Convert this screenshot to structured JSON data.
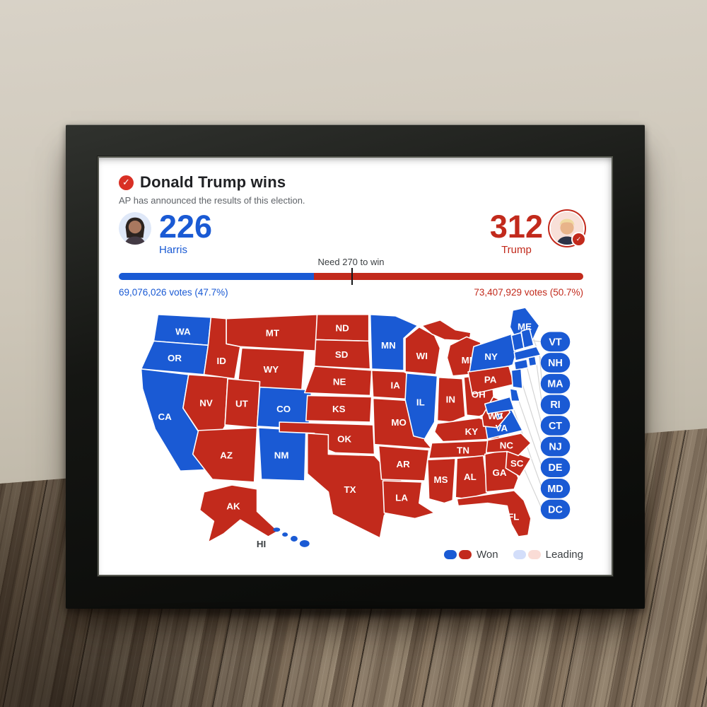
{
  "scene": {
    "setting": "black picture frame standing on rustic wooden table against beige wall",
    "frame_color": "#141613",
    "wall_color": "#cdc6b8",
    "table_wood_color": "#82725f"
  },
  "theme": {
    "dem_blue": "#1a5ad4",
    "rep_red": "#c22a1c",
    "dem_blue_light": "#d3defa",
    "rep_red_light": "#fadcd6",
    "check_red": "#d93025",
    "title_color": "#202124",
    "subtitle_color": "#5f6368",
    "legend_text": "#3c4043",
    "connector_gray": "#d4d4d4",
    "state_label_color": "#ffffff",
    "hi_label_color": "#3c4043"
  },
  "header": {
    "check_icon": "red-circle-white-checkmark",
    "title": "Donald Trump wins",
    "subtitle": "AP has announced the results of this election."
  },
  "scoreboard": {
    "threshold_label": "Need 270 to win",
    "harris": {
      "name": "Harris",
      "electoral_votes": 226,
      "votes_label": "69,076,026 votes (47.7%)",
      "photo": "kamala-harris-portrait"
    },
    "trump": {
      "name": "Trump",
      "electoral_votes": 312,
      "votes_label": "73,407,929 votes (50.7%)",
      "photo": "donald-trump-portrait",
      "winner_badge": "white-checkmark-red-badge"
    }
  },
  "legend": {
    "won_label": "Won",
    "leading_label": "Leading"
  },
  "map": {
    "pill_states": [
      "VT",
      "NH",
      "MA",
      "RI",
      "CT",
      "NJ",
      "DE",
      "MD",
      "DC"
    ],
    "states": [
      {
        "id": "WA",
        "label": "WA",
        "winner": "harris"
      },
      {
        "id": "OR",
        "label": "OR",
        "winner": "harris"
      },
      {
        "id": "CA",
        "label": "CA",
        "winner": "harris"
      },
      {
        "id": "NV",
        "label": "NV",
        "winner": "trump"
      },
      {
        "id": "ID",
        "label": "ID",
        "winner": "trump"
      },
      {
        "id": "MT",
        "label": "MT",
        "winner": "trump"
      },
      {
        "id": "WY",
        "label": "WY",
        "winner": "trump"
      },
      {
        "id": "UT",
        "label": "UT",
        "winner": "trump"
      },
      {
        "id": "CO",
        "label": "CO",
        "winner": "harris"
      },
      {
        "id": "AZ",
        "label": "AZ",
        "winner": "trump"
      },
      {
        "id": "NM",
        "label": "NM",
        "winner": "harris"
      },
      {
        "id": "ND",
        "label": "ND",
        "winner": "trump"
      },
      {
        "id": "SD",
        "label": "SD",
        "winner": "trump"
      },
      {
        "id": "NE",
        "label": "NE",
        "winner": "trump"
      },
      {
        "id": "KS",
        "label": "KS",
        "winner": "trump"
      },
      {
        "id": "OK",
        "label": "OK",
        "winner": "trump"
      },
      {
        "id": "TX",
        "label": "TX",
        "winner": "trump"
      },
      {
        "id": "MN",
        "label": "MN",
        "winner": "harris"
      },
      {
        "id": "IA",
        "label": "IA",
        "winner": "trump"
      },
      {
        "id": "MO",
        "label": "MO",
        "winner": "trump"
      },
      {
        "id": "AR",
        "label": "AR",
        "winner": "trump"
      },
      {
        "id": "LA",
        "label": "LA",
        "winner": "trump"
      },
      {
        "id": "WI",
        "label": "WI",
        "winner": "trump"
      },
      {
        "id": "IL",
        "label": "IL",
        "winner": "harris"
      },
      {
        "id": "MI",
        "label": "MI",
        "winner": "trump"
      },
      {
        "id": "IN",
        "label": "IN",
        "winner": "trump"
      },
      {
        "id": "OH",
        "label": "OH",
        "winner": "trump"
      },
      {
        "id": "KY",
        "label": "KY",
        "winner": "trump"
      },
      {
        "id": "TN",
        "label": "TN",
        "winner": "trump"
      },
      {
        "id": "MS",
        "label": "MS",
        "winner": "trump"
      },
      {
        "id": "AL",
        "label": "AL",
        "winner": "trump"
      },
      {
        "id": "GA",
        "label": "GA",
        "winner": "trump"
      },
      {
        "id": "FL",
        "label": "FL",
        "winner": "trump"
      },
      {
        "id": "SC",
        "label": "SC",
        "winner": "trump"
      },
      {
        "id": "NC",
        "label": "NC",
        "winner": "trump"
      },
      {
        "id": "VA",
        "label": "VA",
        "winner": "harris"
      },
      {
        "id": "WV",
        "label": "WV",
        "winner": "trump"
      },
      {
        "id": "PA",
        "label": "PA",
        "winner": "trump"
      },
      {
        "id": "NY",
        "label": "NY",
        "winner": "harris"
      },
      {
        "id": "ME",
        "label": "ME",
        "winner": "harris"
      },
      {
        "id": "VT",
        "label": "",
        "winner": "harris"
      },
      {
        "id": "NH",
        "label": "",
        "winner": "harris"
      },
      {
        "id": "MA",
        "label": "",
        "winner": "harris"
      },
      {
        "id": "RI",
        "label": "",
        "winner": "harris"
      },
      {
        "id": "CT",
        "label": "",
        "winner": "harris"
      },
      {
        "id": "NJ",
        "label": "",
        "winner": "harris"
      },
      {
        "id": "DE",
        "label": "",
        "winner": "harris"
      },
      {
        "id": "MD",
        "label": "",
        "winner": "harris"
      },
      {
        "id": "DC",
        "label": "",
        "winner": "harris"
      },
      {
        "id": "AK",
        "label": "AK",
        "winner": "trump"
      },
      {
        "id": "HI",
        "label": "HI",
        "winner": "harris"
      }
    ]
  }
}
